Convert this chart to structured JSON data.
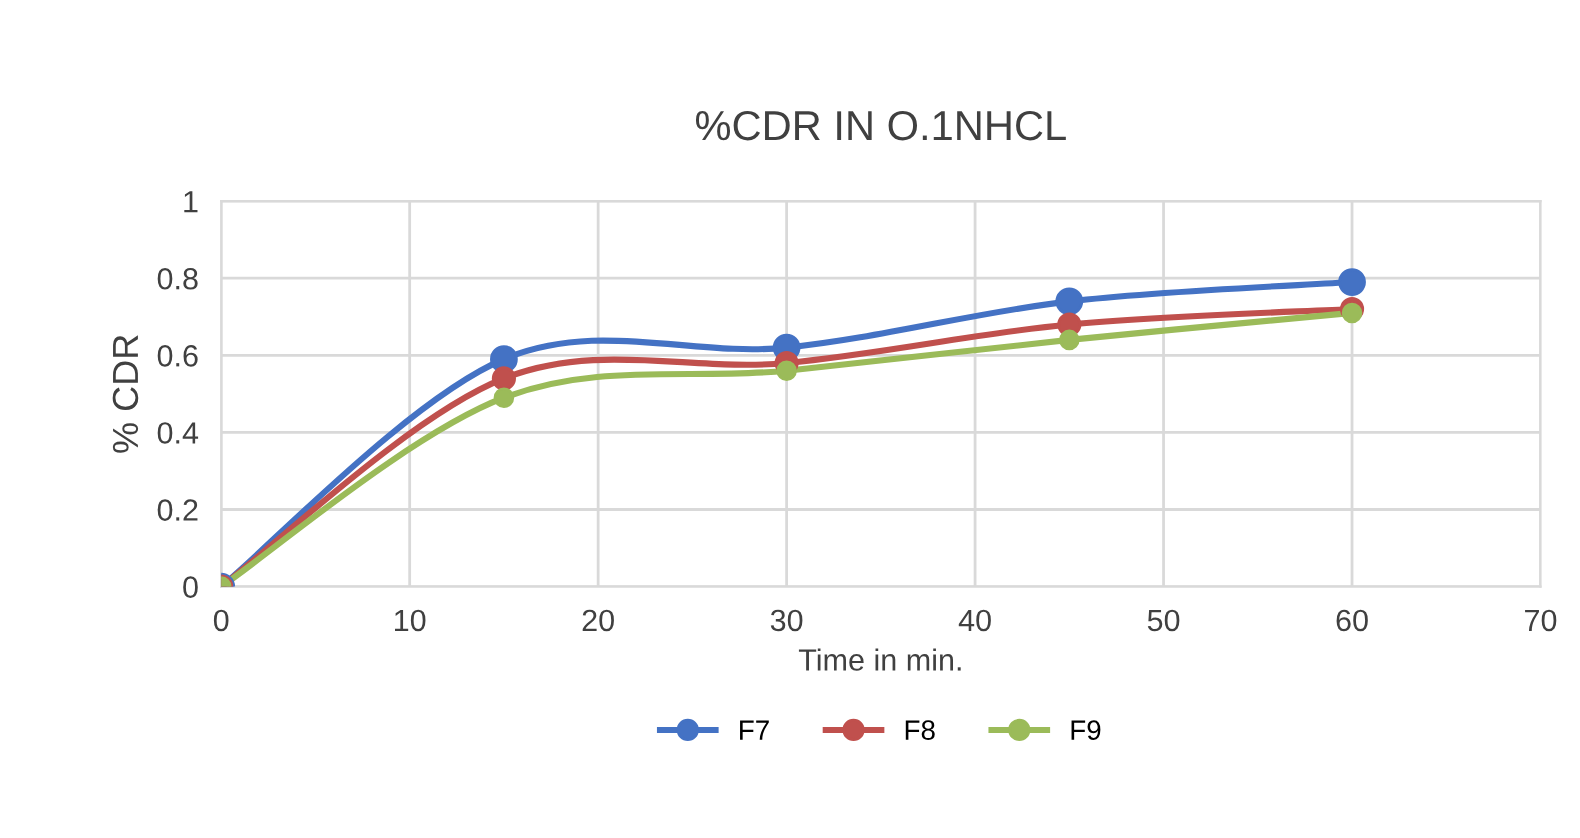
{
  "chart_data": {
    "type": "line",
    "title": "%CDR IN O.1NHCL",
    "xlabel": "Time in min.",
    "ylabel": "% CDR",
    "x": [
      0,
      15,
      30,
      45,
      60
    ],
    "series": [
      {
        "name": "F7",
        "color": "#4472c4",
        "values": [
          0,
          0.59,
          0.62,
          0.74,
          0.79
        ]
      },
      {
        "name": "F8",
        "color": "#c0504d",
        "values": [
          0,
          0.54,
          0.58,
          0.68,
          0.72
        ]
      },
      {
        "name": "F9",
        "color": "#9bbb59",
        "values": [
          0,
          0.49,
          0.56,
          0.64,
          0.71
        ]
      }
    ],
    "xlim": [
      0,
      70
    ],
    "xticks": [
      0,
      10,
      20,
      30,
      40,
      50,
      60,
      70
    ],
    "ylim": [
      0,
      1
    ],
    "yticks": [
      0,
      0.2,
      0.4,
      0.6,
      0.8,
      1
    ],
    "grid": true,
    "legend": "bottom",
    "marker": "circle",
    "line_style": "solid"
  }
}
